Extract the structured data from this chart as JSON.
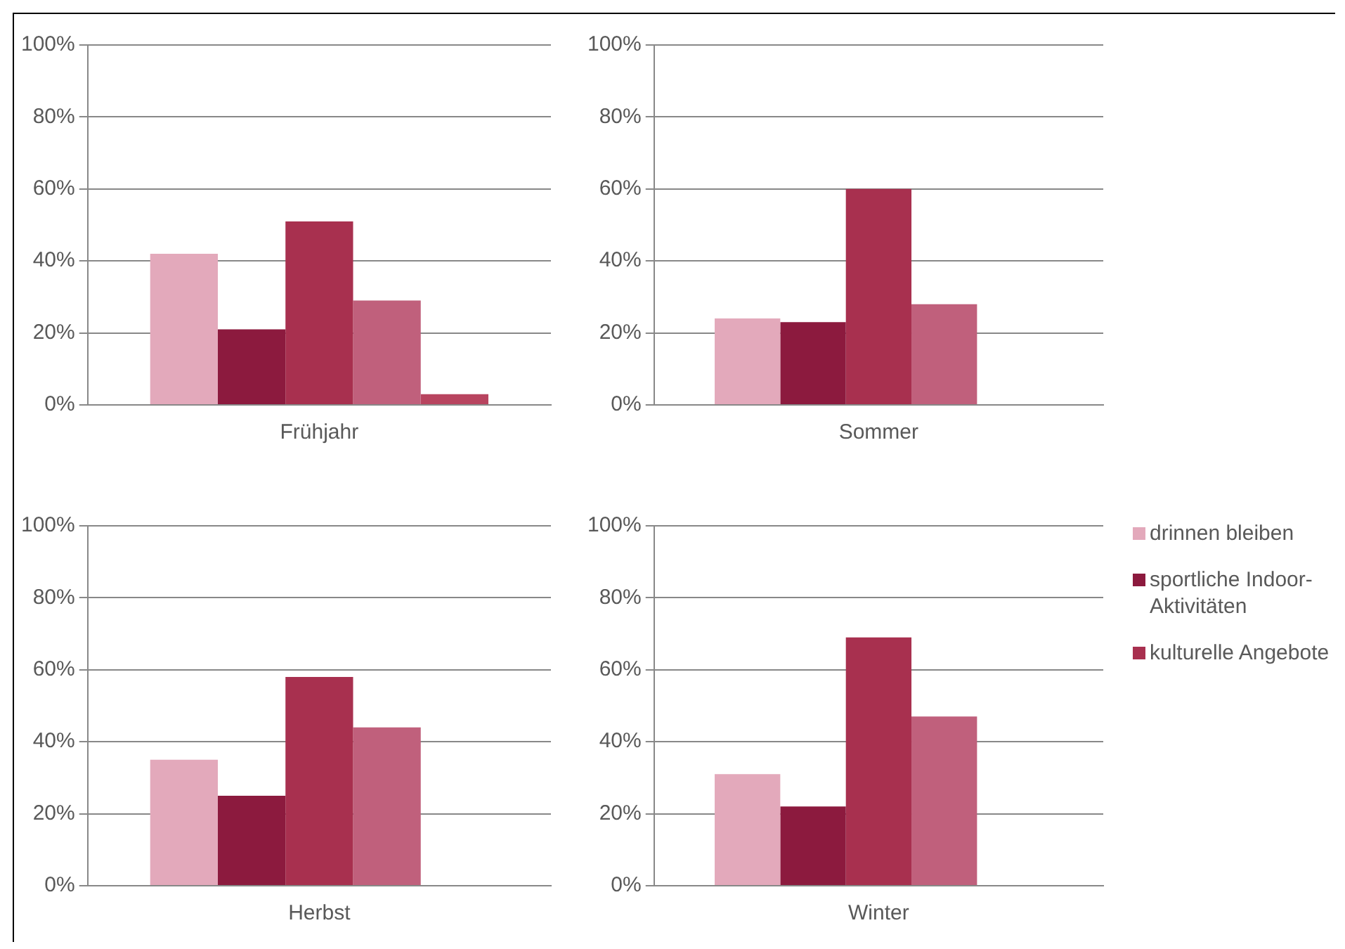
{
  "chart_data": [
    {
      "type": "bar",
      "categories": [
        "Frühjahr"
      ],
      "ylim": [
        0,
        100
      ],
      "yticks": [
        {
          "value": 0,
          "label": "0%"
        },
        {
          "value": 20,
          "label": "20%"
        },
        {
          "value": 40,
          "label": "40%"
        },
        {
          "value": 60,
          "label": "60%"
        },
        {
          "value": 80,
          "label": "80%"
        },
        {
          "value": 100,
          "label": "100%"
        }
      ],
      "grid": "y",
      "series": [
        {
          "color": "#e3a9bb",
          "values": [
            42
          ]
        },
        {
          "color": "#8c1a3e",
          "values": [
            21
          ]
        },
        {
          "color": "#a8304f",
          "values": [
            51
          ]
        },
        {
          "color": "#c0607c",
          "values": [
            29
          ]
        },
        {
          "color": "#b8445f",
          "values": [
            3
          ]
        }
      ]
    },
    {
      "type": "bar",
      "categories": [
        "Sommer"
      ],
      "ylim": [
        0,
        100
      ],
      "yticks": [
        {
          "value": 0,
          "label": "0%"
        },
        {
          "value": 20,
          "label": "20%"
        },
        {
          "value": 40,
          "label": "40%"
        },
        {
          "value": 60,
          "label": "60%"
        },
        {
          "value": 80,
          "label": "80%"
        },
        {
          "value": 100,
          "label": "100%"
        }
      ],
      "grid": "y",
      "series": [
        {
          "color": "#e3a9bb",
          "values": [
            24
          ]
        },
        {
          "color": "#8c1a3e",
          "values": [
            23
          ]
        },
        {
          "color": "#a8304f",
          "values": [
            60
          ]
        },
        {
          "color": "#c0607c",
          "values": [
            28
          ]
        },
        {
          "color": "#b8445f",
          "values": [
            null
          ]
        }
      ]
    },
    {
      "type": "bar",
      "categories": [
        "Herbst"
      ],
      "ylim": [
        0,
        100
      ],
      "yticks": [
        {
          "value": 0,
          "label": "0%"
        },
        {
          "value": 20,
          "label": "20%"
        },
        {
          "value": 40,
          "label": "40%"
        },
        {
          "value": 60,
          "label": "60%"
        },
        {
          "value": 80,
          "label": "80%"
        },
        {
          "value": 100,
          "label": "100%"
        }
      ],
      "grid": "y",
      "series": [
        {
          "color": "#e3a9bb",
          "values": [
            35
          ]
        },
        {
          "color": "#8c1a3e",
          "values": [
            25
          ]
        },
        {
          "color": "#a8304f",
          "values": [
            58
          ]
        },
        {
          "color": "#c0607c",
          "values": [
            44
          ]
        },
        {
          "color": "#b8445f",
          "values": [
            null
          ]
        }
      ]
    },
    {
      "type": "bar",
      "categories": [
        "Winter"
      ],
      "ylim": [
        0,
        100
      ],
      "yticks": [
        {
          "value": 0,
          "label": "0%"
        },
        {
          "value": 20,
          "label": "20%"
        },
        {
          "value": 40,
          "label": "40%"
        },
        {
          "value": 60,
          "label": "60%"
        },
        {
          "value": 80,
          "label": "80%"
        },
        {
          "value": 100,
          "label": "100%"
        }
      ],
      "grid": "y",
      "legend": "right",
      "series": [
        {
          "name": "drinnen bleiben",
          "color": "#e3a9bb",
          "values": [
            31
          ]
        },
        {
          "name": "sportliche Indoor-Aktivitäten",
          "color": "#8c1a3e",
          "values": [
            22
          ]
        },
        {
          "name": "kulturelle Angebote",
          "color": "#a8304f",
          "values": [
            69
          ]
        },
        {
          "color": "#c0607c",
          "values": [
            47
          ]
        },
        {
          "color": "#b8445f",
          "values": [
            null
          ]
        }
      ]
    }
  ]
}
